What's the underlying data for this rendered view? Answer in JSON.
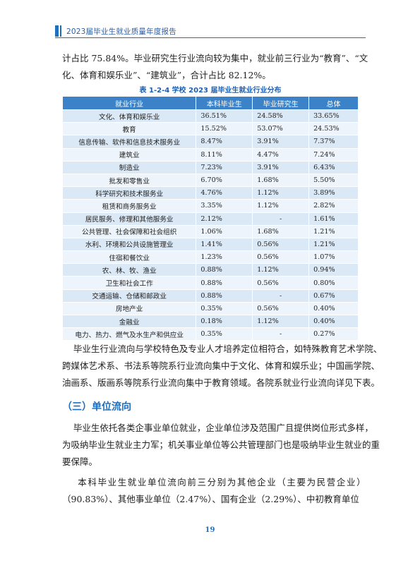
{
  "header": {
    "title": "2023届毕业生就业质量年度报告"
  },
  "intro": {
    "line1": "计占比 75.84%。毕业研究生行业流向较为集中，就业前三行业为“教育”、“文",
    "line2": "化、体育和娱乐业”、“建筑业”，合计占比 82.12%。"
  },
  "table": {
    "caption": "表 1-2-4  学校 2023 届毕业生就业行业分布",
    "headers": [
      "就业行业",
      "本科毕业生",
      "毕业研究生",
      "总体"
    ],
    "rows": [
      {
        "industry": "文化、体育和娱乐业",
        "undergrad": "36.51%",
        "grad": "24.58%",
        "total": "33.65%"
      },
      {
        "industry": "教育",
        "undergrad": "15.52%",
        "grad": "53.07%",
        "total": "24.53%"
      },
      {
        "industry": "信息传输、软件和信息技术服务业",
        "undergrad": "8.47%",
        "grad": "3.91%",
        "total": "7.37%"
      },
      {
        "industry": "建筑业",
        "undergrad": "8.11%",
        "grad": "4.47%",
        "total": "7.24%"
      },
      {
        "industry": "制造业",
        "undergrad": "7.23%",
        "grad": "3.91%",
        "total": "6.43%"
      },
      {
        "industry": "批发和零售业",
        "undergrad": "6.70%",
        "grad": "1.68%",
        "total": "5.50%"
      },
      {
        "industry": "科学研究和技术服务业",
        "undergrad": "4.76%",
        "grad": "1.12%",
        "total": "3.89%"
      },
      {
        "industry": "租赁和商务服务业",
        "undergrad": "3.35%",
        "grad": "1.12%",
        "total": "2.82%"
      },
      {
        "industry": "居民服务、修理和其他服务业",
        "undergrad": "2.12%",
        "grad": "-",
        "total": "1.61%"
      },
      {
        "industry": "公共管理、社会保障和社会组织",
        "undergrad": "1.06%",
        "grad": "1.68%",
        "total": "1.21%"
      },
      {
        "industry": "水利、环境和公共设施管理业",
        "undergrad": "1.41%",
        "grad": "0.56%",
        "total": "1.21%"
      },
      {
        "industry": "住宿和餐饮业",
        "undergrad": "1.23%",
        "grad": "0.56%",
        "total": "1.07%"
      },
      {
        "industry": "农、林、牧、渔业",
        "undergrad": "0.88%",
        "grad": "1.12%",
        "total": "0.94%"
      },
      {
        "industry": "卫生和社会工作",
        "undergrad": "0.88%",
        "grad": "0.56%",
        "total": "0.80%"
      },
      {
        "industry": "交通运输、仓储和邮政业",
        "undergrad": "0.88%",
        "grad": "-",
        "total": "0.67%"
      },
      {
        "industry": "房地产业",
        "undergrad": "0.35%",
        "grad": "0.56%",
        "total": "0.40%"
      },
      {
        "industry": "金融业",
        "undergrad": "0.18%",
        "grad": "1.12%",
        "total": "0.40%"
      },
      {
        "industry": "电力、热力、燃气及水生产和供应业",
        "undergrad": "0.35%",
        "grad": "-",
        "total": "0.27%"
      }
    ]
  },
  "para2": {
    "line1": "    毕业生行业流向与学校特色及专业人才培养定位相符合，如特殊教育艺术学院、",
    "line2": "跨媒体艺术系、书法系等院系行业流向集中于文化、体育和娱乐业；中国画学院、",
    "line3": "油画系、版画系等院系行业流向集中于教育领域。各院系就业行业流向详见下表。"
  },
  "section": {
    "title": "（三）单位流向"
  },
  "para3": {
    "line1": "    毕业生依托各类企事业单位就业，企业单位涉及范围广且提供岗位形式多样，",
    "line2": "为吸纳毕业生就业主力军；机关事业单位等公共管理部门也是吸纳毕业生就业的重",
    "line3": "要保障。"
  },
  "para4": {
    "line1": "    本科毕业生就业单位流向前三分别为其他企业（主要为民营企业）",
    "line2": "（90.83%）、其他事业单位（2.47%）、国有企业（2.29%）、中初教育单位"
  },
  "footer": {
    "page_number": "19"
  }
}
